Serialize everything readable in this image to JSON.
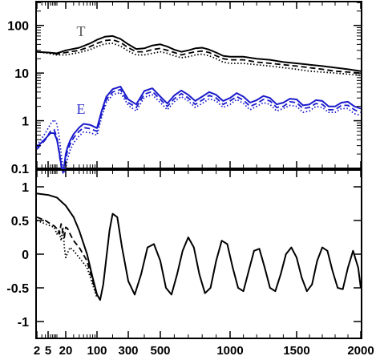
{
  "chart_data": [
    {
      "type": "line",
      "panel": "top",
      "x_scale": "custom-multipole",
      "y_scale": "log",
      "xlim": [
        2,
        2000
      ],
      "ylim": [
        0.1,
        316
      ],
      "grid": false,
      "ytick_labels": [
        "0.1",
        "1",
        "10",
        "100"
      ],
      "ytick_values": [
        0.1,
        1,
        10,
        100
      ],
      "xtick_labels": [
        "2",
        "5",
        "20",
        "100",
        "300",
        "500",
        "1000",
        "1500",
        "2000"
      ],
      "xtick_values": [
        2,
        5,
        20,
        100,
        300,
        500,
        1000,
        1500,
        2000
      ],
      "annotations": [
        {
          "text": "T",
          "color": "#555555",
          "x": 35,
          "y": 60
        },
        {
          "text": "E",
          "color": "#3333cc",
          "x": 35,
          "y": 1.4
        }
      ],
      "series": [
        {
          "group": "T",
          "style": "solid",
          "color": "#000000",
          "x": [
            2,
            5,
            10,
            20,
            40,
            70,
            100,
            150,
            200,
            250,
            300,
            350,
            400,
            450,
            500,
            550,
            600,
            650,
            700,
            750,
            800,
            850,
            900,
            950,
            1000,
            1100,
            1200,
            1300,
            1400,
            1500,
            1600,
            1700,
            1800,
            1900,
            2000
          ],
          "y": [
            28,
            27,
            26,
            30,
            34,
            42,
            50,
            58,
            60,
            52,
            40,
            32,
            33,
            38,
            40,
            36,
            31,
            28,
            30,
            33,
            34,
            31,
            27,
            23,
            22,
            22,
            20,
            19,
            17,
            16,
            15,
            14,
            13,
            12,
            11
          ]
        },
        {
          "group": "T",
          "style": "dashed",
          "color": "#000000",
          "x": [
            2,
            5,
            10,
            20,
            40,
            70,
            100,
            150,
            200,
            250,
            300,
            350,
            400,
            450,
            500,
            550,
            600,
            650,
            700,
            750,
            800,
            850,
            900,
            950,
            1000,
            1100,
            1200,
            1300,
            1400,
            1500,
            1600,
            1700,
            1800,
            1900,
            2000
          ],
          "y": [
            28,
            27,
            25,
            27,
            30,
            36,
            42,
            48,
            50,
            44,
            34,
            28,
            28,
            31,
            33,
            30,
            27,
            24,
            26,
            28,
            29,
            27,
            23,
            20,
            19,
            19,
            17,
            16,
            15,
            14,
            13,
            12,
            11,
            10.5,
            10
          ]
        },
        {
          "group": "T",
          "style": "dotted",
          "color": "#000000",
          "x": [
            2,
            5,
            10,
            20,
            40,
            70,
            100,
            150,
            200,
            250,
            300,
            350,
            400,
            450,
            500,
            550,
            600,
            650,
            700,
            750,
            800,
            850,
            900,
            950,
            1000,
            1100,
            1200,
            1300,
            1400,
            1500,
            1600,
            1700,
            1800,
            1900,
            2000
          ],
          "y": [
            28,
            26,
            24,
            24,
            27,
            31,
            36,
            41,
            42,
            37,
            29,
            24,
            24,
            26,
            28,
            26,
            23,
            21,
            22,
            24,
            25,
            23,
            20,
            17,
            16,
            16,
            15,
            14,
            13,
            12,
            11,
            10.5,
            10,
            9.5,
            9
          ]
        },
        {
          "group": "E",
          "style": "solid",
          "color": "#1a1acc",
          "x": [
            2,
            4,
            6,
            8,
            10,
            12,
            14,
            16,
            18,
            20,
            22,
            25,
            30,
            40,
            50,
            70,
            100,
            130,
            160,
            200,
            250,
            300,
            350,
            400,
            450,
            500,
            550,
            600,
            650,
            700,
            750,
            800,
            850,
            900,
            950,
            1000,
            1050,
            1100,
            1150,
            1200,
            1250,
            1300,
            1350,
            1400,
            1450,
            1500,
            1550,
            1600,
            1650,
            1700,
            1750,
            1800,
            1850,
            1900,
            1950,
            2000
          ],
          "y": [
            0.28,
            0.42,
            0.55,
            0.55,
            0.4,
            0.22,
            0.12,
            0.085,
            0.12,
            0.2,
            0.28,
            0.38,
            0.52,
            0.72,
            0.86,
            0.82,
            0.7,
            1.6,
            3.2,
            4.6,
            5.2,
            2.8,
            2.2,
            4.2,
            4.8,
            3.2,
            2.3,
            3.4,
            4.3,
            3.5,
            2.6,
            3.2,
            4.0,
            3.5,
            2.6,
            3.0,
            3.8,
            3.2,
            2.4,
            2.7,
            3.3,
            3.0,
            2.2,
            2.4,
            2.9,
            2.8,
            2.1,
            2.2,
            2.7,
            2.6,
            2.0,
            2.0,
            2.4,
            2.5,
            2.0,
            1.8
          ]
        },
        {
          "group": "E",
          "style": "dashed",
          "color": "#1a1acc",
          "x": [
            2,
            4,
            6,
            8,
            10,
            12,
            14,
            16,
            18,
            20,
            22,
            25,
            30,
            40,
            50,
            70,
            100,
            130,
            160,
            200,
            250,
            300,
            350,
            400,
            450,
            500,
            550,
            600,
            650,
            700,
            750,
            800,
            850,
            900,
            950,
            1000,
            1050,
            1100,
            1150,
            1200,
            1250,
            1300,
            1350,
            1400,
            1450,
            1500,
            1550,
            1600,
            1650,
            1700,
            1750,
            1800,
            1850,
            1900,
            1950,
            2000
          ],
          "y": [
            0.25,
            0.4,
            0.6,
            0.65,
            0.45,
            0.2,
            0.11,
            0.08,
            0.1,
            0.16,
            0.24,
            0.32,
            0.44,
            0.6,
            0.72,
            0.68,
            0.6,
            1.4,
            2.8,
            4.0,
            4.5,
            2.4,
            1.9,
            3.6,
            4.1,
            2.8,
            2.0,
            2.9,
            3.7,
            3.0,
            2.2,
            2.7,
            3.4,
            3.0,
            2.2,
            2.6,
            3.2,
            2.7,
            2.0,
            2.3,
            2.8,
            2.6,
            1.9,
            2.0,
            2.5,
            2.4,
            1.8,
            1.9,
            2.3,
            2.2,
            1.7,
            1.7,
            2.1,
            2.1,
            1.7,
            1.5
          ]
        },
        {
          "group": "E",
          "style": "dotted",
          "color": "#1a1acc",
          "x": [
            2,
            4,
            6,
            8,
            10,
            12,
            14,
            16,
            18,
            20,
            22,
            25,
            30,
            40,
            50,
            70,
            100,
            130,
            160,
            200,
            250,
            300,
            350,
            400,
            450,
            500,
            550,
            600,
            650,
            700,
            750,
            800,
            850,
            900,
            950,
            1000,
            1050,
            1100,
            1150,
            1200,
            1250,
            1300,
            1350,
            1400,
            1450,
            1500,
            1550,
            1600,
            1650,
            1700,
            1750,
            1800,
            1850,
            1900,
            1950,
            2000
          ],
          "y": [
            0.3,
            0.55,
            0.85,
            1.05,
            0.85,
            0.45,
            0.2,
            0.1,
            0.08,
            0.1,
            0.16,
            0.24,
            0.34,
            0.48,
            0.58,
            0.56,
            0.5,
            1.2,
            2.4,
            3.5,
            3.9,
            2.1,
            1.6,
            3.1,
            3.5,
            2.4,
            1.7,
            2.5,
            3.2,
            2.6,
            1.9,
            2.3,
            2.9,
            2.6,
            1.9,
            2.2,
            2.8,
            2.3,
            1.7,
            2.0,
            2.4,
            2.2,
            1.6,
            1.8,
            2.1,
            2.0,
            1.5,
            1.6,
            2.0,
            1.9,
            1.5,
            1.5,
            1.8,
            1.8,
            1.4,
            1.3
          ]
        }
      ]
    },
    {
      "type": "line",
      "panel": "bottom",
      "x_scale": "custom-multipole",
      "xlim": [
        2,
        2000
      ],
      "ylim": [
        -1.25,
        1.25
      ],
      "grid": false,
      "ytick_labels": [
        "-1",
        "-0.5",
        "0",
        "0.5",
        "1"
      ],
      "ytick_values": [
        -1,
        -0.5,
        0,
        0.5,
        1
      ],
      "xtick_labels": [
        "2",
        "5",
        "20",
        "100",
        "300",
        "500",
        "1000",
        "1500",
        "2000"
      ],
      "xtick_values": [
        2,
        5,
        20,
        100,
        300,
        500,
        1000,
        1500,
        2000
      ],
      "series": [
        {
          "style": "solid",
          "color": "#000000",
          "x": [
            2,
            5,
            10,
            20,
            30,
            40,
            60,
            80,
            100,
            120,
            140,
            160,
            180,
            200,
            230,
            260,
            300,
            340,
            380,
            420,
            460,
            500,
            540,
            580,
            620,
            660,
            700,
            740,
            780,
            820,
            860,
            900,
            940,
            980,
            1020,
            1060,
            1100,
            1140,
            1180,
            1220,
            1260,
            1300,
            1340,
            1380,
            1420,
            1460,
            1500,
            1540,
            1580,
            1620,
            1660,
            1700,
            1740,
            1780,
            1820,
            1860,
            1900,
            1940,
            1980,
            2000
          ],
          "y": [
            0.9,
            0.88,
            0.84,
            0.72,
            0.55,
            0.35,
            0.0,
            -0.35,
            -0.6,
            -0.68,
            -0.45,
            -0.05,
            0.35,
            0.6,
            0.55,
            0.1,
            -0.4,
            -0.6,
            -0.3,
            0.1,
            0.15,
            -0.1,
            -0.5,
            -0.6,
            -0.3,
            0.05,
            0.25,
            0.1,
            -0.3,
            -0.58,
            -0.5,
            -0.1,
            0.2,
            0.15,
            -0.2,
            -0.5,
            -0.55,
            -0.25,
            0.05,
            0.08,
            -0.2,
            -0.5,
            -0.55,
            -0.3,
            0.0,
            0.1,
            -0.05,
            -0.35,
            -0.55,
            -0.45,
            -0.1,
            0.1,
            0.05,
            -0.25,
            -0.5,
            -0.52,
            -0.2,
            0.05,
            -0.2,
            -0.5
          ]
        },
        {
          "style": "dashed",
          "color": "#000000",
          "x": [
            2,
            4,
            6,
            8,
            10,
            12,
            14,
            16,
            18,
            20,
            22,
            25,
            30,
            40,
            60,
            80,
            100
          ],
          "y": [
            0.55,
            0.5,
            0.45,
            0.42,
            0.38,
            0.3,
            0.45,
            0.32,
            0.25,
            0.4,
            0.38,
            0.3,
            0.2,
            0.1,
            -0.1,
            -0.4,
            -0.62
          ]
        },
        {
          "style": "dotted",
          "color": "#000000",
          "x": [
            2,
            4,
            6,
            8,
            10,
            12,
            14,
            16,
            18,
            20,
            22,
            25,
            30,
            40,
            60,
            80,
            100
          ],
          "y": [
            0.5,
            0.45,
            0.42,
            0.4,
            0.3,
            0.35,
            0.2,
            0.4,
            0.1,
            -0.05,
            0.02,
            0.1,
            0.05,
            -0.05,
            -0.2,
            -0.45,
            -0.65
          ]
        }
      ]
    }
  ]
}
